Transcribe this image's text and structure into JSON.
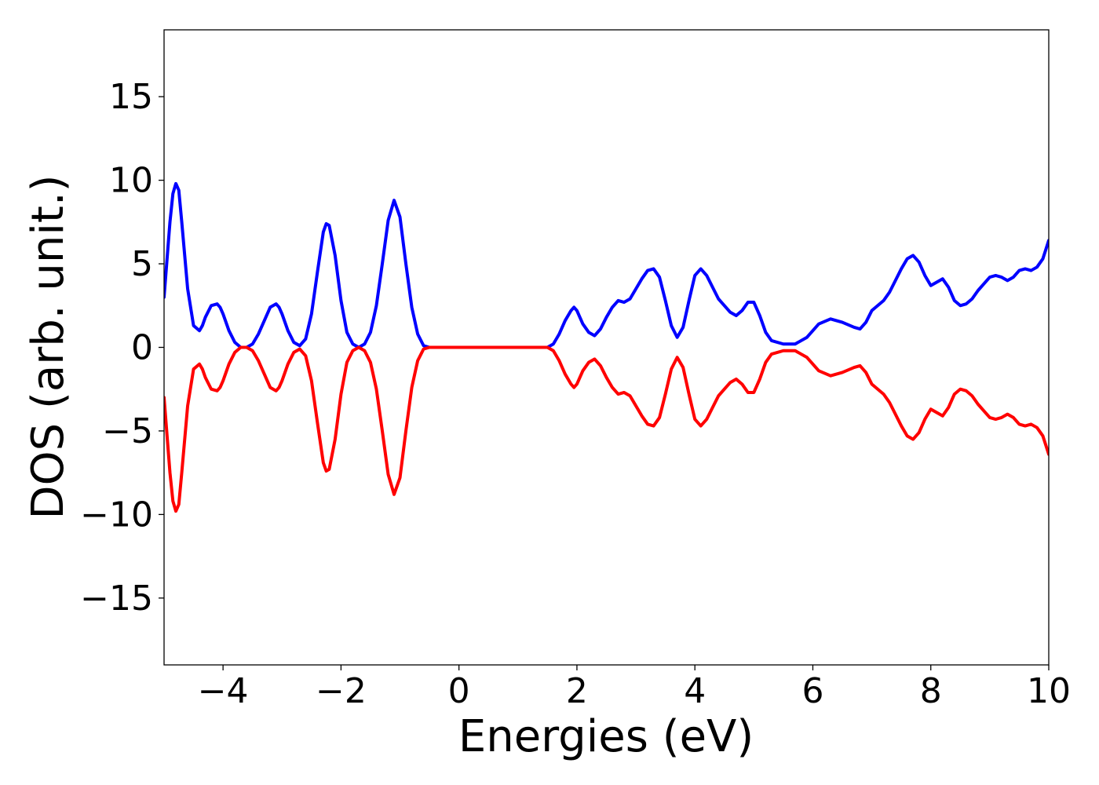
{
  "chart_data": {
    "type": "line",
    "title": "",
    "xlabel": "Energies (eV)",
    "ylabel": "DOS (arb. unit.)",
    "xlim": [
      -5,
      10
    ],
    "ylim": [
      -19,
      19
    ],
    "xticks": [
      -4,
      -2,
      0,
      2,
      4,
      6,
      8,
      10
    ],
    "xtick_labels": [
      "−4",
      "−2",
      "0",
      "2",
      "4",
      "6",
      "8",
      "10"
    ],
    "yticks": [
      -15,
      -10,
      -5,
      0,
      5,
      10,
      15
    ],
    "ytick_labels": [
      "−15",
      "−10",
      "−5",
      "0",
      "5",
      "10",
      "15"
    ],
    "grid": false,
    "legend": "none",
    "series": [
      {
        "color": "#0000ff",
        "x": [
          -5.0,
          -4.9,
          -4.85,
          -4.8,
          -4.75,
          -4.7,
          -4.6,
          -4.5,
          -4.4,
          -4.35,
          -4.3,
          -4.2,
          -4.1,
          -4.05,
          -4.0,
          -3.9,
          -3.8,
          -3.7,
          -3.6,
          -3.5,
          -3.4,
          -3.3,
          -3.2,
          -3.1,
          -3.05,
          -3.0,
          -2.9,
          -2.8,
          -2.7,
          -2.6,
          -2.5,
          -2.4,
          -2.3,
          -2.25,
          -2.2,
          -2.1,
          -2.0,
          -1.9,
          -1.8,
          -1.7,
          -1.6,
          -1.5,
          -1.4,
          -1.3,
          -1.2,
          -1.1,
          -1.0,
          -0.9,
          -0.8,
          -0.7,
          -0.6,
          -0.5,
          0.0,
          0.5,
          1.0,
          1.5,
          1.6,
          1.7,
          1.8,
          1.9,
          1.95,
          2.0,
          2.1,
          2.2,
          2.3,
          2.4,
          2.5,
          2.6,
          2.7,
          2.8,
          2.9,
          3.0,
          3.1,
          3.2,
          3.3,
          3.4,
          3.5,
          3.6,
          3.7,
          3.8,
          3.9,
          4.0,
          4.1,
          4.2,
          4.3,
          4.4,
          4.5,
          4.6,
          4.7,
          4.8,
          4.9,
          5.0,
          5.1,
          5.2,
          5.3,
          5.5,
          5.7,
          5.9,
          6.1,
          6.3,
          6.5,
          6.7,
          6.8,
          6.9,
          7.0,
          7.2,
          7.3,
          7.4,
          7.5,
          7.6,
          7.7,
          7.8,
          7.9,
          8.0,
          8.1,
          8.2,
          8.3,
          8.4,
          8.5,
          8.6,
          8.7,
          8.8,
          8.9,
          9.0,
          9.1,
          9.2,
          9.3,
          9.4,
          9.5,
          9.6,
          9.7,
          9.8,
          9.9,
          10.0
        ],
        "y": [
          3.0,
          7.5,
          9.2,
          9.8,
          9.4,
          7.5,
          3.5,
          1.3,
          1.0,
          1.3,
          1.8,
          2.5,
          2.6,
          2.4,
          2.0,
          1.0,
          0.3,
          0.0,
          0.0,
          0.2,
          0.8,
          1.6,
          2.4,
          2.6,
          2.4,
          2.0,
          1.0,
          0.3,
          0.1,
          0.5,
          2.0,
          4.5,
          6.9,
          7.4,
          7.3,
          5.5,
          2.8,
          0.9,
          0.2,
          0.0,
          0.2,
          0.9,
          2.5,
          5.0,
          7.6,
          8.8,
          7.8,
          5.0,
          2.4,
          0.8,
          0.1,
          0.0,
          0.0,
          0.0,
          0.0,
          0.0,
          0.2,
          0.8,
          1.6,
          2.2,
          2.4,
          2.2,
          1.4,
          0.9,
          0.7,
          1.1,
          1.8,
          2.4,
          2.8,
          2.7,
          2.9,
          3.5,
          4.1,
          4.6,
          4.7,
          4.2,
          2.8,
          1.3,
          0.6,
          1.2,
          2.8,
          4.3,
          4.7,
          4.3,
          3.6,
          2.9,
          2.5,
          2.1,
          1.9,
          2.2,
          2.7,
          2.7,
          1.9,
          0.9,
          0.4,
          0.2,
          0.2,
          0.6,
          1.4,
          1.7,
          1.5,
          1.2,
          1.1,
          1.5,
          2.2,
          2.8,
          3.3,
          4.0,
          4.7,
          5.3,
          5.5,
          5.1,
          4.3,
          3.7,
          3.9,
          4.1,
          3.6,
          2.8,
          2.5,
          2.6,
          2.9,
          3.4,
          3.8,
          4.2,
          4.3,
          4.2,
          4.0,
          4.2,
          4.6,
          4.7,
          4.6,
          4.8,
          5.3,
          6.4
        ]
      },
      {
        "color": "#ff0000",
        "x": [
          -5.0,
          -4.9,
          -4.85,
          -4.8,
          -4.75,
          -4.7,
          -4.6,
          -4.5,
          -4.4,
          -4.35,
          -4.3,
          -4.2,
          -4.1,
          -4.05,
          -4.0,
          -3.9,
          -3.8,
          -3.7,
          -3.6,
          -3.5,
          -3.4,
          -3.3,
          -3.2,
          -3.1,
          -3.05,
          -3.0,
          -2.9,
          -2.8,
          -2.7,
          -2.6,
          -2.5,
          -2.4,
          -2.3,
          -2.25,
          -2.2,
          -2.1,
          -2.0,
          -1.9,
          -1.8,
          -1.7,
          -1.6,
          -1.5,
          -1.4,
          -1.3,
          -1.2,
          -1.1,
          -1.0,
          -0.9,
          -0.8,
          -0.7,
          -0.6,
          -0.5,
          0.0,
          0.5,
          1.0,
          1.5,
          1.6,
          1.7,
          1.8,
          1.9,
          1.95,
          2.0,
          2.1,
          2.2,
          2.3,
          2.4,
          2.5,
          2.6,
          2.7,
          2.8,
          2.9,
          3.0,
          3.1,
          3.2,
          3.3,
          3.4,
          3.5,
          3.6,
          3.7,
          3.8,
          3.9,
          4.0,
          4.1,
          4.2,
          4.3,
          4.4,
          4.5,
          4.6,
          4.7,
          4.8,
          4.9,
          5.0,
          5.1,
          5.2,
          5.3,
          5.5,
          5.7,
          5.9,
          6.1,
          6.3,
          6.5,
          6.7,
          6.8,
          6.9,
          7.0,
          7.2,
          7.3,
          7.4,
          7.5,
          7.6,
          7.7,
          7.8,
          7.9,
          8.0,
          8.1,
          8.2,
          8.3,
          8.4,
          8.5,
          8.6,
          8.7,
          8.8,
          8.9,
          9.0,
          9.1,
          9.2,
          9.3,
          9.4,
          9.5,
          9.6,
          9.7,
          9.8,
          9.9,
          10.0
        ],
        "y": [
          -3.0,
          -7.5,
          -9.2,
          -9.8,
          -9.4,
          -7.5,
          -3.5,
          -1.3,
          -1.0,
          -1.3,
          -1.8,
          -2.5,
          -2.6,
          -2.4,
          -2.0,
          -1.0,
          -0.3,
          0.0,
          0.0,
          -0.2,
          -0.8,
          -1.6,
          -2.4,
          -2.6,
          -2.4,
          -2.0,
          -1.0,
          -0.3,
          -0.1,
          -0.5,
          -2.0,
          -4.5,
          -6.9,
          -7.4,
          -7.3,
          -5.5,
          -2.8,
          -0.9,
          -0.2,
          0.0,
          -0.2,
          -0.9,
          -2.5,
          -5.0,
          -7.6,
          -8.8,
          -7.8,
          -5.0,
          -2.4,
          -0.8,
          -0.1,
          0.0,
          0.0,
          0.0,
          0.0,
          0.0,
          -0.2,
          -0.8,
          -1.6,
          -2.2,
          -2.4,
          -2.2,
          -1.4,
          -0.9,
          -0.7,
          -1.1,
          -1.8,
          -2.4,
          -2.8,
          -2.7,
          -2.9,
          -3.5,
          -4.1,
          -4.6,
          -4.7,
          -4.2,
          -2.8,
          -1.3,
          -0.6,
          -1.2,
          -2.8,
          -4.3,
          -4.7,
          -4.3,
          -3.6,
          -2.9,
          -2.5,
          -2.1,
          -1.9,
          -2.2,
          -2.7,
          -2.7,
          -1.9,
          -0.9,
          -0.4,
          -0.2,
          -0.2,
          -0.6,
          -1.4,
          -1.7,
          -1.5,
          -1.2,
          -1.1,
          -1.5,
          -2.2,
          -2.8,
          -3.3,
          -4.0,
          -4.7,
          -5.3,
          -5.5,
          -5.1,
          -4.3,
          -3.7,
          -3.9,
          -4.1,
          -3.6,
          -2.8,
          -2.5,
          -2.6,
          -2.9,
          -3.4,
          -3.8,
          -4.2,
          -4.3,
          -4.2,
          -4.0,
          -4.2,
          -4.6,
          -4.7,
          -4.6,
          -4.8,
          -5.3,
          -6.4
        ]
      }
    ]
  }
}
